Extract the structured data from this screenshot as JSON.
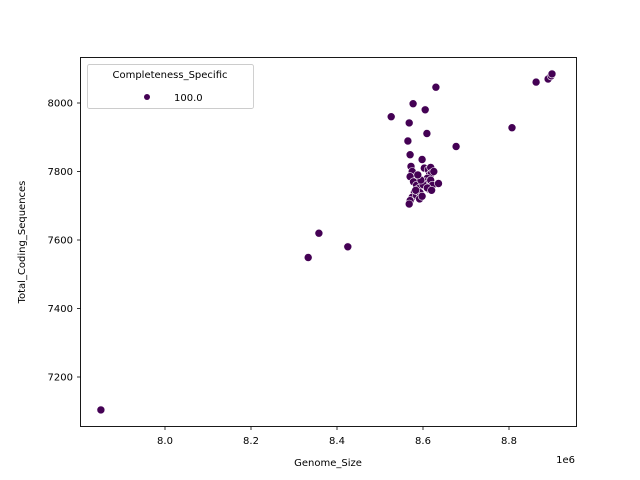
{
  "chart_data": {
    "type": "scatter",
    "title": "",
    "xlabel": "Genome_Size",
    "ylabel": "Total_Coding_Sequences",
    "x_offset_label": "1e6",
    "xlim": [
      7.84,
      8.96
    ],
    "ylim": [
      7060,
      8120
    ],
    "x_ticks": [
      8.0,
      8.2,
      8.4,
      8.6,
      8.8
    ],
    "x_tick_labels": [
      "8.0",
      "8.2",
      "8.4",
      "8.6",
      "8.8"
    ],
    "y_ticks": [
      7200,
      7400,
      7600,
      7800,
      8000
    ],
    "y_tick_labels": [
      "7200",
      "7400",
      "7600",
      "7800",
      "8000"
    ],
    "grid": false,
    "legend": {
      "title": "Completeness_Specific",
      "position": "upper left",
      "entries": [
        {
          "label": "100.0",
          "color": "#440154"
        }
      ]
    },
    "marker_color": "#440154",
    "marker_edge": "#ffffff",
    "series": [
      {
        "name": "100.0",
        "points": [
          [
            7.851,
            7104
          ],
          [
            8.333,
            7549
          ],
          [
            8.358,
            7620
          ],
          [
            8.425,
            7580
          ],
          [
            8.526,
            7960
          ],
          [
            8.565,
            7889
          ],
          [
            8.568,
            7942
          ],
          [
            8.57,
            7849
          ],
          [
            8.577,
            7998
          ],
          [
            8.605,
            7980
          ],
          [
            8.609,
            7911
          ],
          [
            8.63,
            8046
          ],
          [
            8.677,
            7873
          ],
          [
            8.807,
            7928
          ],
          [
            8.863,
            8061
          ],
          [
            8.891,
            8070
          ],
          [
            8.898,
            8079
          ],
          [
            8.9,
            8085
          ],
          [
            8.572,
            7815
          ],
          [
            8.575,
            7800
          ],
          [
            8.57,
            7785
          ],
          [
            8.578,
            7770
          ],
          [
            8.585,
            7760
          ],
          [
            8.59,
            7750
          ],
          [
            8.58,
            7740
          ],
          [
            8.575,
            7725
          ],
          [
            8.57,
            7715
          ],
          [
            8.568,
            7705
          ],
          [
            8.585,
            7730
          ],
          [
            8.593,
            7738
          ],
          [
            8.598,
            7835
          ],
          [
            8.603,
            7810
          ],
          [
            8.612,
            7805
          ],
          [
            8.618,
            7812
          ],
          [
            8.615,
            7790
          ],
          [
            8.62,
            7795
          ],
          [
            8.61,
            7780
          ],
          [
            8.605,
            7770
          ],
          [
            8.612,
            7765
          ],
          [
            8.618,
            7775
          ],
          [
            8.608,
            7755
          ],
          [
            8.614,
            7748
          ],
          [
            8.622,
            7760
          ],
          [
            8.6,
            7762
          ],
          [
            8.595,
            7775
          ],
          [
            8.588,
            7790
          ],
          [
            8.636,
            7765
          ],
          [
            8.583,
            7745
          ],
          [
            8.592,
            7720
          ],
          [
            8.598,
            7728
          ],
          [
            8.61,
            7752
          ],
          [
            8.62,
            7745
          ],
          [
            8.625,
            7800
          ]
        ]
      }
    ]
  }
}
